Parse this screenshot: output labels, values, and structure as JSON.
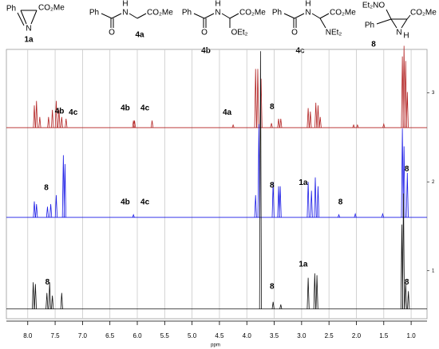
{
  "structures": [
    {
      "label": "1a",
      "texts": [
        "Ph",
        "CO₂Me",
        "N"
      ]
    },
    {
      "label": "4a",
      "texts": [
        "Ph",
        "O",
        "H",
        "N",
        "CO₂Me"
      ]
    },
    {
      "label": "4b",
      "texts": [
        "Ph",
        "O",
        "H",
        "N",
        "CO₂Me",
        "OEt₂"
      ]
    },
    {
      "label": "4c",
      "texts": [
        "Ph",
        "O",
        "H",
        "N",
        "CO₂Me",
        "NEt₂"
      ]
    },
    {
      "label": "8",
      "texts": [
        "Et₂NO",
        "Ph",
        "CO₂Me",
        "N",
        "H"
      ]
    }
  ],
  "chart_data": {
    "type": "spectrum",
    "xlabel": "ppm",
    "xlim": [
      8.39,
      0.71
    ],
    "xticks": [
      {
        "value": 8,
        "label": "8.0"
      },
      7.5,
      {
        "value": 7,
        "label": "7.0"
      },
      6.5,
      {
        "value": 6,
        "label": "6.0"
      },
      5.5,
      {
        "value": 5,
        "label": "5.0"
      },
      4.5,
      {
        "value": 4,
        "label": "4.0"
      },
      3.5,
      {
        "value": 3,
        "label": "3.0"
      },
      2.5,
      {
        "value": 2,
        "label": "2.0"
      },
      1.5,
      {
        "value": 1,
        "label": "1.0"
      }
    ],
    "ylim": [
      0.46,
      3.49
    ],
    "yticks": [
      1,
      2,
      3
    ],
    "grid": true,
    "series": [
      {
        "color": "#b22222",
        "offset": 2.61,
        "x": [
          7.88,
          7.84,
          7.78,
          7.62,
          7.55,
          7.48,
          7.43,
          7.38,
          7.3,
          6.07,
          6.05,
          5.73,
          4.25,
          3.84,
          3.8,
          3.74,
          3.55,
          3.42,
          3.38,
          2.88,
          2.84,
          2.74,
          2.7,
          2.66,
          2.05,
          1.98,
          1.5,
          1.16,
          1.13,
          1.1,
          1.07
        ],
        "values": [
          0.25,
          0.3,
          0.12,
          0.12,
          0.2,
          0.3,
          0.2,
          0.12,
          0.1,
          0.08,
          0.08,
          0.08,
          0.03,
          0.66,
          0.66,
          0.55,
          0.05,
          0.1,
          0.1,
          0.22,
          0.18,
          0.28,
          0.25,
          0.12,
          0.03,
          0.03,
          0.04,
          0.8,
          0.92,
          0.75,
          0.4
        ]
      },
      {
        "color": "#1a1ae6",
        "offset": 1.6,
        "x": [
          7.88,
          7.84,
          7.64,
          7.58,
          7.48,
          7.35,
          7.32,
          6.07,
          3.84,
          3.78,
          3.52,
          3.42,
          3.39,
          2.88,
          2.82,
          2.75,
          2.7,
          2.32,
          2.02,
          1.52,
          1.16,
          1.13,
          1.07
        ],
        "values": [
          0.18,
          0.15,
          0.12,
          0.15,
          0.25,
          0.7,
          0.6,
          0.03,
          0.25,
          1.05,
          0.4,
          0.35,
          0.35,
          0.4,
          0.3,
          0.45,
          0.35,
          0.03,
          0.04,
          0.04,
          1.0,
          0.8,
          0.5
        ]
      },
      {
        "color": "#111111",
        "offset": 0.57,
        "x": [
          7.9,
          7.86,
          7.65,
          7.6,
          7.55,
          7.38,
          3.75,
          3.52,
          3.38,
          2.88,
          2.76,
          2.72,
          1.17,
          1.14,
          1.1,
          1.05
        ],
        "values": [
          0.3,
          0.28,
          0.18,
          0.3,
          0.15,
          0.18,
          2.9,
          0.08,
          0.05,
          0.35,
          0.4,
          0.38,
          0.95,
          1.3,
          0.3,
          0.2
        ]
      }
    ],
    "annotations": [
      {
        "text": "4b",
        "x": 7.42,
        "y": 2.79,
        "color": "#8b00c8"
      },
      {
        "text": "4c",
        "x": 7.17,
        "y": 2.78,
        "color": "#1a7a1a"
      },
      {
        "text": "4b",
        "x": 6.22,
        "y": 2.83,
        "color": "#8b00c8"
      },
      {
        "text": "4c",
        "x": 5.86,
        "y": 2.83,
        "color": "#1a7a1a"
      },
      {
        "text": "4a",
        "x": 4.36,
        "y": 2.78,
        "color": "#1f1fd0"
      },
      {
        "text": "8",
        "x": 3.54,
        "y": 2.84,
        "color": "#d00000"
      },
      {
        "text": "8",
        "x": 7.66,
        "y": 1.93,
        "color": "#d00000"
      },
      {
        "text": "4b",
        "x": 6.22,
        "y": 1.77,
        "color": "#8b00c8"
      },
      {
        "text": "4c",
        "x": 5.86,
        "y": 1.77,
        "color": "#1a7a1a"
      },
      {
        "text": "8",
        "x": 3.54,
        "y": 1.96,
        "color": "#d00000"
      },
      {
        "text": "1a",
        "x": 2.97,
        "y": 1.99,
        "color": "#000000"
      },
      {
        "text": "8",
        "x": 2.29,
        "y": 1.77,
        "color": "#d00000"
      },
      {
        "text": "8",
        "x": 1.08,
        "y": 2.14,
        "color": "#d00000"
      },
      {
        "text": "8",
        "x": 7.64,
        "y": 0.87,
        "color": "#d00000"
      },
      {
        "text": "1a",
        "x": 2.97,
        "y": 1.07,
        "color": "#000000"
      },
      {
        "text": "8",
        "x": 3.54,
        "y": 0.82,
        "color": "#d00000"
      },
      {
        "text": "8",
        "x": 1.08,
        "y": 0.87,
        "color": "#d00000"
      }
    ]
  }
}
